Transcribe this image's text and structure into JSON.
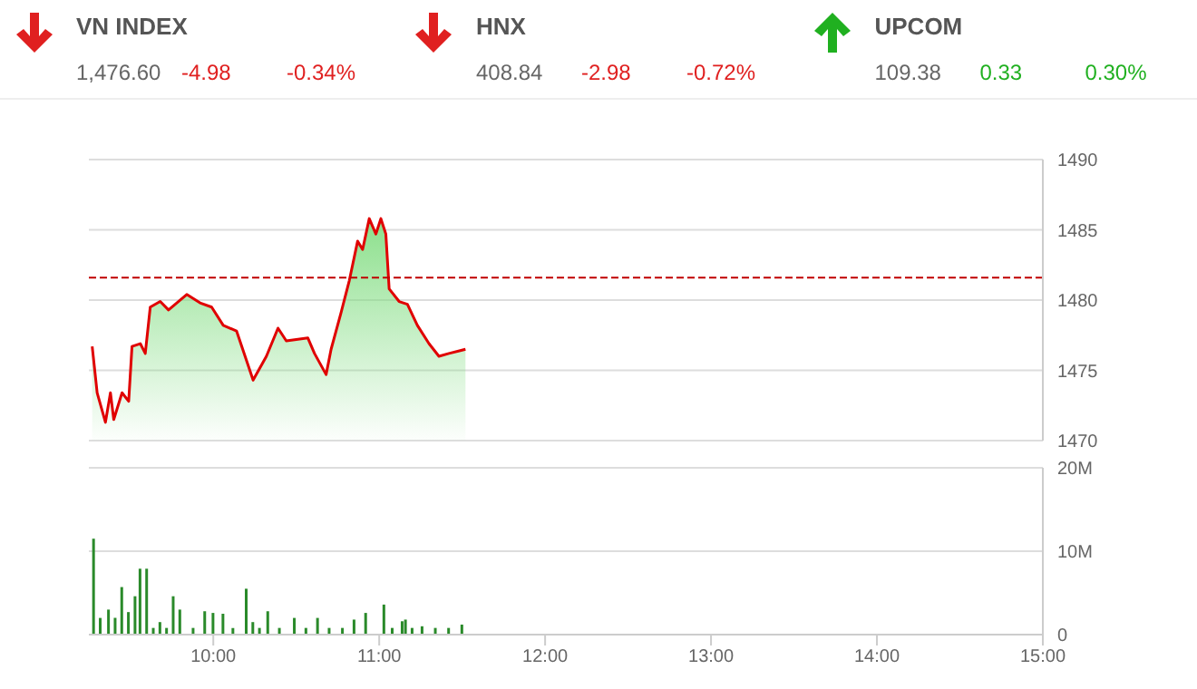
{
  "chart_data": [
    {
      "type": "other",
      "categories": [
        "VN INDEX",
        "HNX",
        "UPCOM"
      ],
      "colors": [
        "#e02020",
        "#e02020",
        "#20b020"
      ],
      "values": [
        -4.98,
        -2.98,
        0.33
      ],
      "data_labels": true,
      "annotations": [
        "1,476.60",
        "-0.34%",
        "408.84",
        "-0.72%",
        "109.38",
        "0.30%"
      ]
    },
    {
      "type": "area",
      "xlim": [
        9.25,
        15
      ],
      "ylim": [
        1470,
        1490
      ],
      "yticks": [
        1470,
        1475,
        1480,
        1485,
        1490
      ],
      "grid": "y",
      "legend": false,
      "tick_labels": "y",
      "ref_lines": [
        {
          "axis": "y",
          "value": 1481.6,
          "color": "#c00000",
          "line_style": "dashed"
        }
      ],
      "series": [
        {
          "color": "#e00000",
          "x": [
            9.27,
            9.3,
            9.35,
            9.38,
            9.4,
            9.45,
            9.49,
            9.51,
            9.56,
            9.59,
            9.62,
            9.68,
            9.73,
            9.84,
            9.92,
            9.99,
            10.06,
            10.14,
            10.24,
            10.32,
            10.39,
            10.44,
            10.57,
            10.61,
            10.68,
            10.71,
            10.77,
            10.82,
            10.87,
            10.9,
            10.94,
            10.98,
            11.01,
            11.04,
            11.06,
            11.12,
            11.17,
            11.23,
            11.3,
            11.36,
            11.42,
            11.52
          ],
          "values": [
            1476.7,
            1473.4,
            1471.3,
            1473.4,
            1471.5,
            1473.4,
            1472.8,
            1476.7,
            1476.9,
            1476.2,
            1479.5,
            1479.9,
            1479.3,
            1480.4,
            1479.8,
            1479.5,
            1478.2,
            1477.8,
            1474.3,
            1476.0,
            1478.0,
            1477.1,
            1477.3,
            1476.2,
            1474.7,
            1476.5,
            1479.1,
            1481.4,
            1484.2,
            1483.6,
            1485.8,
            1484.7,
            1485.8,
            1484.7,
            1480.8,
            1479.9,
            1479.7,
            1478.2,
            1476.9,
            1476.0,
            1476.2,
            1476.5
          ]
        }
      ]
    },
    {
      "type": "bar",
      "xlim": [
        9.25,
        15
      ],
      "xticks": [
        {
          "value": 10,
          "label": "10:00"
        },
        {
          "value": 11,
          "label": "11:00"
        },
        {
          "value": 12,
          "label": "12:00"
        },
        {
          "value": 13,
          "label": "13:00"
        },
        {
          "value": 14,
          "label": "14:00"
        },
        {
          "value": 15,
          "label": "15:00"
        }
      ],
      "ylim": [
        0,
        20
      ],
      "yticks": [
        0,
        {
          "value": 10,
          "label": "10M"
        },
        {
          "value": 20,
          "label": "20M"
        }
      ],
      "grid": "y",
      "legend": false,
      "series": [
        {
          "color": "#2a8a2a",
          "x": [
            9.28,
            9.32,
            9.37,
            9.41,
            9.45,
            9.49,
            9.53,
            9.56,
            9.6,
            9.64,
            9.68,
            9.72,
            9.76,
            9.8,
            9.88,
            9.95,
            10.0,
            10.06,
            10.12,
            10.2,
            10.24,
            10.28,
            10.33,
            10.4,
            10.49,
            10.56,
            10.63,
            10.7,
            10.78,
            10.85,
            10.92,
            11.03,
            11.08,
            11.14,
            11.16,
            11.2,
            11.26,
            11.34,
            11.42,
            11.5
          ],
          "values": [
            11.5,
            2,
            3,
            2,
            5.7,
            2.7,
            4.6,
            7.9,
            7.9,
            0.8,
            1.5,
            0.8,
            4.6,
            3,
            0.8,
            2.8,
            2.6,
            2.5,
            0.8,
            5.5,
            1.5,
            0.8,
            2.8,
            0.8,
            2,
            0.8,
            2,
            0.8,
            0.8,
            1.8,
            2.6,
            3.6,
            0.8,
            1.6,
            1.8,
            0.8,
            1,
            0.8,
            0.8,
            1.2
          ]
        }
      ]
    }
  ]
}
